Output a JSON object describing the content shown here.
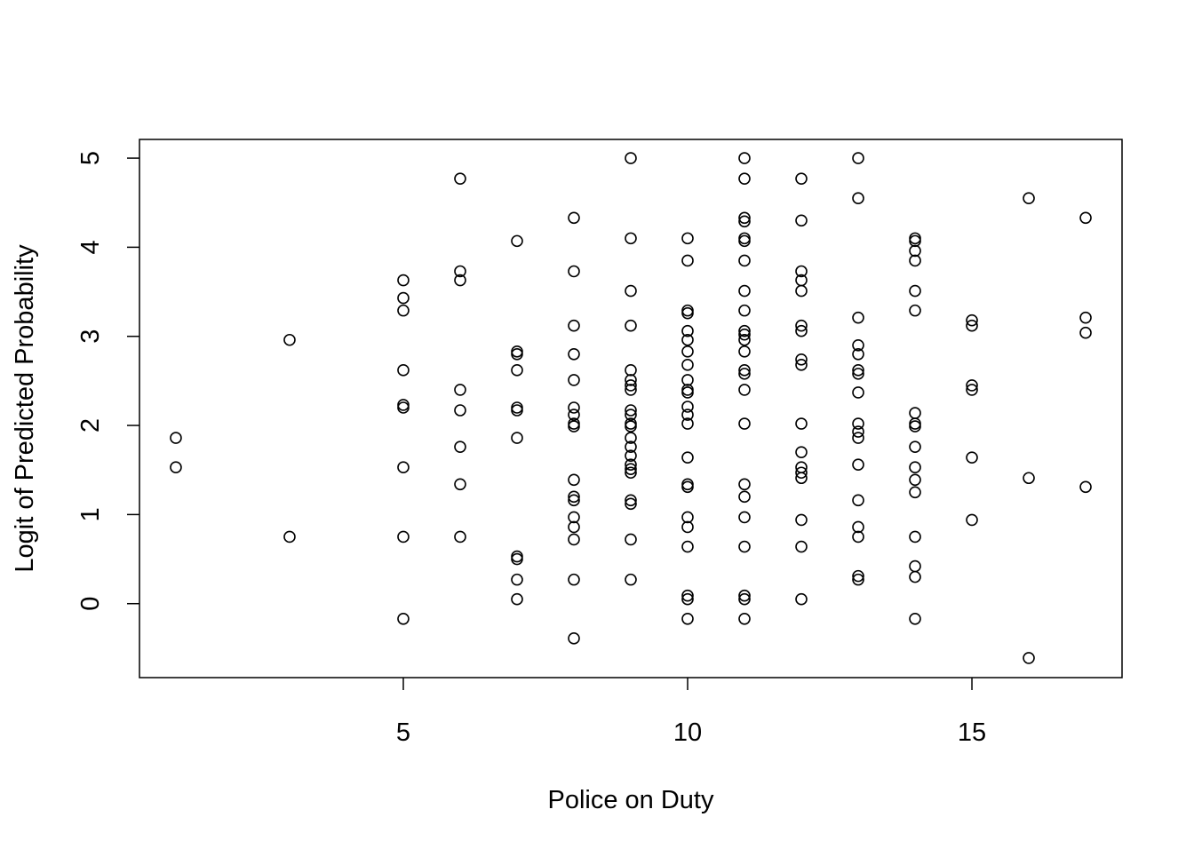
{
  "chart_data": {
    "type": "scatter",
    "title": "",
    "xlabel": "Police on Duty",
    "ylabel": "Logit of Predicted Probability",
    "xlim": [
      0.36,
      17.64
    ],
    "ylim": [
      -0.83,
      5.21
    ],
    "xticks": [
      5,
      10,
      15
    ],
    "yticks": [
      0,
      1,
      2,
      3,
      4,
      5
    ],
    "grid": false,
    "marker": "open-circle",
    "color": "#000000",
    "points": [
      [
        1,
        1.86
      ],
      [
        1,
        1.53
      ],
      [
        3,
        2.96
      ],
      [
        3,
        0.75
      ],
      [
        5,
        3.63
      ],
      [
        5,
        3.43
      ],
      [
        5,
        3.29
      ],
      [
        5,
        2.62
      ],
      [
        5,
        2.23
      ],
      [
        5,
        2.2
      ],
      [
        5,
        1.53
      ],
      [
        5,
        0.75
      ],
      [
        5,
        -0.17
      ],
      [
        6,
        4.77
      ],
      [
        6,
        3.73
      ],
      [
        6,
        3.63
      ],
      [
        6,
        2.4
      ],
      [
        6,
        2.17
      ],
      [
        6,
        1.76
      ],
      [
        6,
        1.34
      ],
      [
        6,
        0.75
      ],
      [
        7,
        4.07
      ],
      [
        7,
        2.83
      ],
      [
        7,
        2.8
      ],
      [
        7,
        2.62
      ],
      [
        7,
        2.2
      ],
      [
        7,
        2.17
      ],
      [
        7,
        1.86
      ],
      [
        7,
        0.53
      ],
      [
        7,
        0.5
      ],
      [
        7,
        0.27
      ],
      [
        7,
        0.05
      ],
      [
        8,
        4.33
      ],
      [
        8,
        3.73
      ],
      [
        8,
        3.12
      ],
      [
        8,
        2.8
      ],
      [
        8,
        2.51
      ],
      [
        8,
        2.2
      ],
      [
        8,
        2.12
      ],
      [
        8,
        2.02
      ],
      [
        8,
        1.99
      ],
      [
        8,
        1.39
      ],
      [
        8,
        1.2
      ],
      [
        8,
        1.16
      ],
      [
        8,
        0.97
      ],
      [
        8,
        0.86
      ],
      [
        8,
        0.72
      ],
      [
        8,
        0.27
      ],
      [
        8,
        -0.39
      ],
      [
        9,
        5.0
      ],
      [
        9,
        4.1
      ],
      [
        9,
        3.51
      ],
      [
        9,
        3.12
      ],
      [
        9,
        2.62
      ],
      [
        9,
        2.51
      ],
      [
        9,
        2.45
      ],
      [
        9,
        2.4
      ],
      [
        9,
        2.17
      ],
      [
        9,
        2.12
      ],
      [
        9,
        2.02
      ],
      [
        9,
        1.99
      ],
      [
        9,
        1.86
      ],
      [
        9,
        1.76
      ],
      [
        9,
        1.66
      ],
      [
        9,
        1.56
      ],
      [
        9,
        1.51
      ],
      [
        9,
        1.47
      ],
      [
        9,
        1.16
      ],
      [
        9,
        1.12
      ],
      [
        9,
        0.72
      ],
      [
        9,
        0.27
      ],
      [
        10,
        4.1
      ],
      [
        10,
        3.85
      ],
      [
        10,
        3.29
      ],
      [
        10,
        3.26
      ],
      [
        10,
        3.06
      ],
      [
        10,
        2.96
      ],
      [
        10,
        2.83
      ],
      [
        10,
        2.68
      ],
      [
        10,
        2.51
      ],
      [
        10,
        2.4
      ],
      [
        10,
        2.37
      ],
      [
        10,
        2.21
      ],
      [
        10,
        2.12
      ],
      [
        10,
        2.02
      ],
      [
        10,
        1.64
      ],
      [
        10,
        1.34
      ],
      [
        10,
        1.31
      ],
      [
        10,
        0.97
      ],
      [
        10,
        0.86
      ],
      [
        10,
        0.64
      ],
      [
        10,
        0.09
      ],
      [
        10,
        0.05
      ],
      [
        10,
        -0.17
      ],
      [
        11,
        5.0
      ],
      [
        11,
        4.77
      ],
      [
        11,
        4.33
      ],
      [
        11,
        4.29
      ],
      [
        11,
        4.1
      ],
      [
        11,
        4.07
      ],
      [
        11,
        3.85
      ],
      [
        11,
        3.51
      ],
      [
        11,
        3.29
      ],
      [
        11,
        3.06
      ],
      [
        11,
        3.02
      ],
      [
        11,
        2.96
      ],
      [
        11,
        2.83
      ],
      [
        11,
        2.62
      ],
      [
        11,
        2.58
      ],
      [
        11,
        2.4
      ],
      [
        11,
        2.02
      ],
      [
        11,
        1.34
      ],
      [
        11,
        1.2
      ],
      [
        11,
        0.97
      ],
      [
        11,
        0.64
      ],
      [
        11,
        0.09
      ],
      [
        11,
        0.05
      ],
      [
        11,
        -0.17
      ],
      [
        12,
        4.77
      ],
      [
        12,
        4.3
      ],
      [
        12,
        3.73
      ],
      [
        12,
        3.63
      ],
      [
        12,
        3.51
      ],
      [
        12,
        3.12
      ],
      [
        12,
        3.06
      ],
      [
        12,
        2.74
      ],
      [
        12,
        2.68
      ],
      [
        12,
        2.02
      ],
      [
        12,
        1.7
      ],
      [
        12,
        1.53
      ],
      [
        12,
        1.47
      ],
      [
        12,
        1.41
      ],
      [
        12,
        0.94
      ],
      [
        12,
        0.64
      ],
      [
        12,
        0.05
      ],
      [
        13,
        5.0
      ],
      [
        13,
        4.55
      ],
      [
        13,
        3.21
      ],
      [
        13,
        2.9
      ],
      [
        13,
        2.8
      ],
      [
        13,
        2.62
      ],
      [
        13,
        2.58
      ],
      [
        13,
        2.37
      ],
      [
        13,
        2.02
      ],
      [
        13,
        1.93
      ],
      [
        13,
        1.86
      ],
      [
        13,
        1.56
      ],
      [
        13,
        1.16
      ],
      [
        13,
        0.86
      ],
      [
        13,
        0.75
      ],
      [
        13,
        0.31
      ],
      [
        13,
        0.27
      ],
      [
        14,
        4.1
      ],
      [
        14,
        4.07
      ],
      [
        14,
        3.96
      ],
      [
        14,
        3.85
      ],
      [
        14,
        3.51
      ],
      [
        14,
        3.29
      ],
      [
        14,
        2.14
      ],
      [
        14,
        2.02
      ],
      [
        14,
        1.99
      ],
      [
        14,
        1.76
      ],
      [
        14,
        1.53
      ],
      [
        14,
        1.39
      ],
      [
        14,
        1.25
      ],
      [
        14,
        0.75
      ],
      [
        14,
        0.42
      ],
      [
        14,
        0.3
      ],
      [
        14,
        -0.17
      ],
      [
        15,
        3.18
      ],
      [
        15,
        3.12
      ],
      [
        15,
        2.45
      ],
      [
        15,
        2.4
      ],
      [
        15,
        1.64
      ],
      [
        15,
        0.94
      ],
      [
        16,
        4.55
      ],
      [
        16,
        1.41
      ],
      [
        16,
        -0.61
      ],
      [
        17,
        4.33
      ],
      [
        17,
        3.21
      ],
      [
        17,
        3.04
      ],
      [
        17,
        1.31
      ]
    ]
  }
}
